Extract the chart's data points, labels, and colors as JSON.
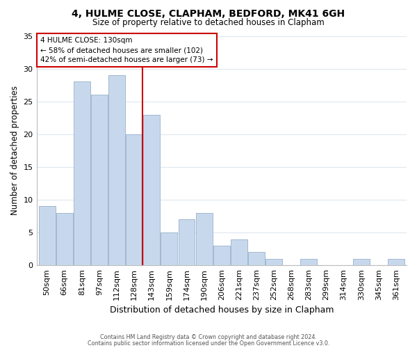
{
  "title1": "4, HULME CLOSE, CLAPHAM, BEDFORD, MK41 6GH",
  "title2": "Size of property relative to detached houses in Clapham",
  "xlabel": "Distribution of detached houses by size in Clapham",
  "ylabel": "Number of detached properties",
  "bar_labels": [
    "50sqm",
    "66sqm",
    "81sqm",
    "97sqm",
    "112sqm",
    "128sqm",
    "143sqm",
    "159sqm",
    "174sqm",
    "190sqm",
    "206sqm",
    "221sqm",
    "237sqm",
    "252sqm",
    "268sqm",
    "283sqm",
    "299sqm",
    "314sqm",
    "330sqm",
    "345sqm",
    "361sqm"
  ],
  "bar_values": [
    9,
    8,
    28,
    26,
    29,
    20,
    23,
    5,
    7,
    8,
    3,
    4,
    2,
    1,
    0,
    1,
    0,
    0,
    1,
    0,
    1
  ],
  "bar_color": "#c8d8ec",
  "bar_edge_color": "#a0b8d0",
  "highlight_index": 5,
  "highlight_color": "#cc0000",
  "ylim": [
    0,
    35
  ],
  "yticks": [
    0,
    5,
    10,
    15,
    20,
    25,
    30,
    35
  ],
  "annotation_title": "4 HULME CLOSE: 130sqm",
  "annotation_line1": "← 58% of detached houses are smaller (102)",
  "annotation_line2": "42% of semi-detached houses are larger (73) →",
  "footer1": "Contains HM Land Registry data © Crown copyright and database right 2024.",
  "footer2": "Contains public sector information licensed under the Open Government Licence v3.0.",
  "bg_color": "#ffffff",
  "grid_color": "#dde8f0"
}
